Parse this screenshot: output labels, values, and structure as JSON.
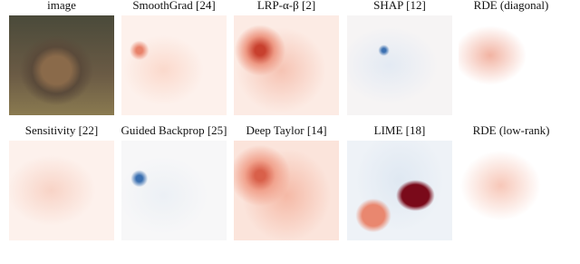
{
  "figure": {
    "panels": [
      {
        "label": "image"
      },
      {
        "label": "SmoothGrad [24]"
      },
      {
        "label": "LRP-α-β [2]"
      },
      {
        "label": "SHAP [12]"
      },
      {
        "label": "RDE (diagonal)"
      },
      {
        "label": "Sensitivity [22]"
      },
      {
        "label": "Guided Backprop [25]"
      },
      {
        "label": "Deep Taylor [14]"
      },
      {
        "label": "LIME [18]"
      },
      {
        "label": "RDE (low-rank)"
      }
    ]
  }
}
